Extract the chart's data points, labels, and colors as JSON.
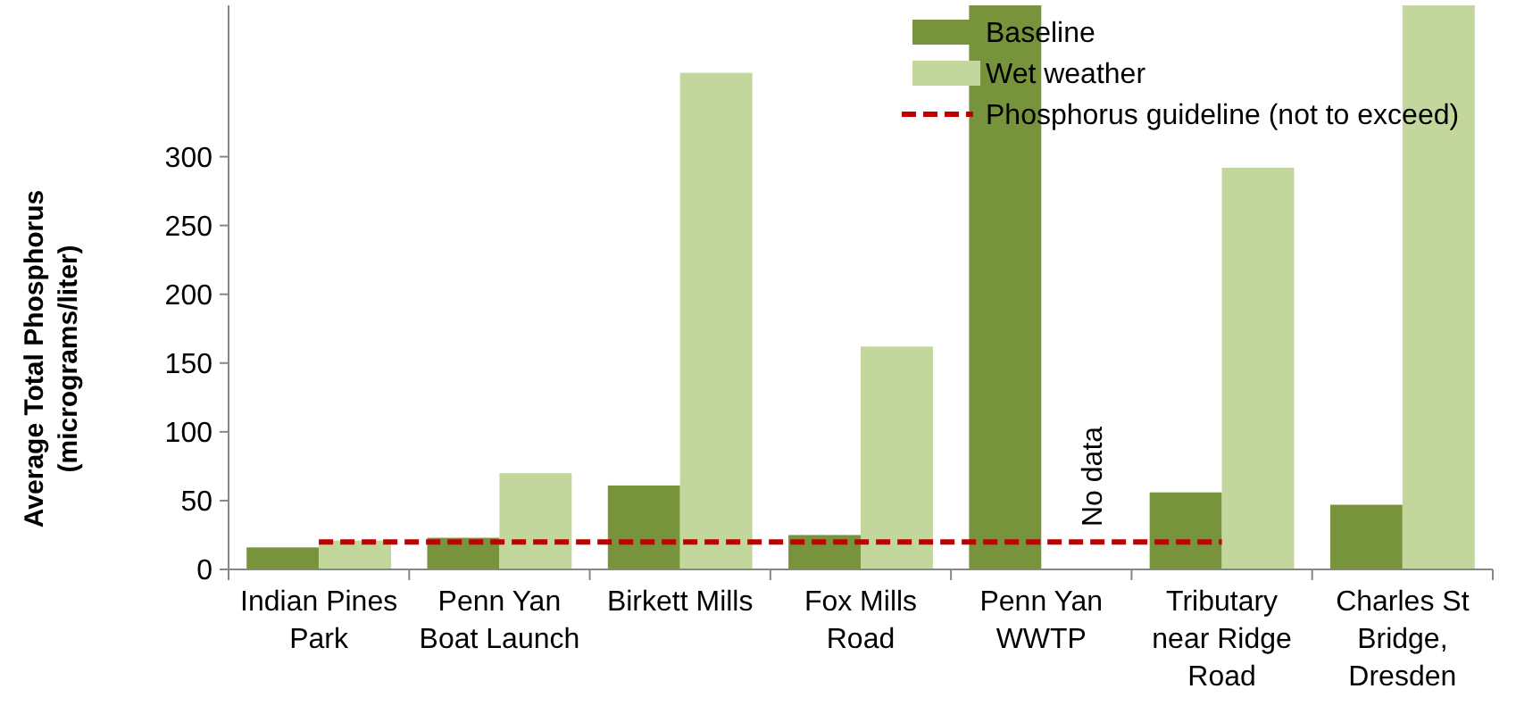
{
  "chart_data": {
    "type": "bar",
    "categories": [
      "Indian Pines\nPark",
      "Penn Yan\nBoat Launch",
      "Birkett Mills",
      "Fox Mills\nRoad",
      "Penn Yan\nWWTP",
      "Tributary\nnear Ridge\nRoad",
      "Charles St\nBridge,\nDresden"
    ],
    "ylabel": "Average Total Phosphorus\n(micrograms/liter)",
    "ylim": [
      0,
      410
    ],
    "yticks": [
      0,
      50,
      100,
      150,
      200,
      250,
      300
    ],
    "series": [
      {
        "name": "Baseline",
        "color": "#77933c",
        "values": [
          16,
          23,
          61,
          25,
          410,
          56,
          47
        ]
      },
      {
        "name": "Wet weather",
        "color": "#c3d69b",
        "values": [
          21,
          70,
          361,
          162,
          null,
          292,
          410
        ]
      },
      {
        "name": "Phosphorus guideline (not to exceed)",
        "type": "line",
        "color": "#c00000",
        "line_style": "dashed",
        "values": [
          20,
          20,
          20,
          20,
          20,
          20,
          null
        ]
      }
    ],
    "annotations": [
      {
        "text": "No data",
        "x": "Penn Yan\nWWTP",
        "y": 0
      }
    ],
    "legend": "top right",
    "grid": false
  }
}
